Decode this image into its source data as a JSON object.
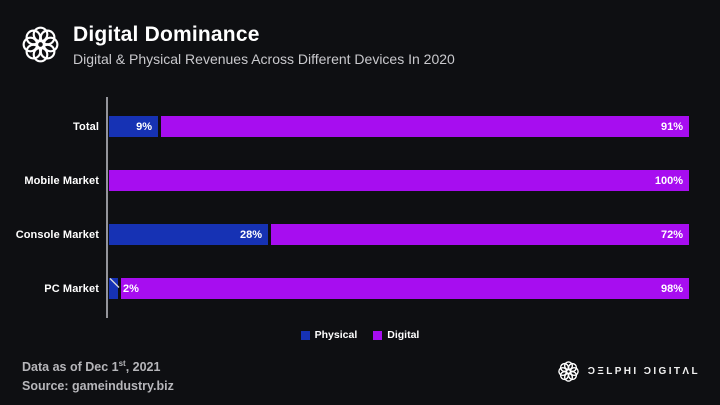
{
  "header": {
    "title": "Digital Dominance",
    "subtitle": "Digital & Physical Revenues Across Different Devices In 2020"
  },
  "chart_data": {
    "type": "bar",
    "orientation": "horizontal",
    "stacked": true,
    "grid": false,
    "legend_position": "bottom",
    "categories": [
      "Total",
      "Mobile Market",
      "Console Market",
      "PC Market"
    ],
    "series": [
      {
        "name": "Physical",
        "color": "#1632b4",
        "values": [
          9,
          0,
          28,
          2
        ]
      },
      {
        "name": "Digital",
        "color": "#a70df0",
        "values": [
          91,
          100,
          72,
          98
        ]
      }
    ],
    "value_suffix": "%",
    "xlim": [
      0,
      100
    ]
  },
  "footer": {
    "line1_pre": "Data as of Dec 1",
    "line1_sup": "st",
    "line1_post": ", 2021",
    "source": "Source: gameindustry.biz"
  },
  "branding": {
    "wordmark": "ƆΞLPHI ƆIGITΛL"
  },
  "colors": {
    "background": "#0e0f12",
    "physical": "#1632b4",
    "digital": "#a70df0",
    "axis": "#94959b"
  }
}
